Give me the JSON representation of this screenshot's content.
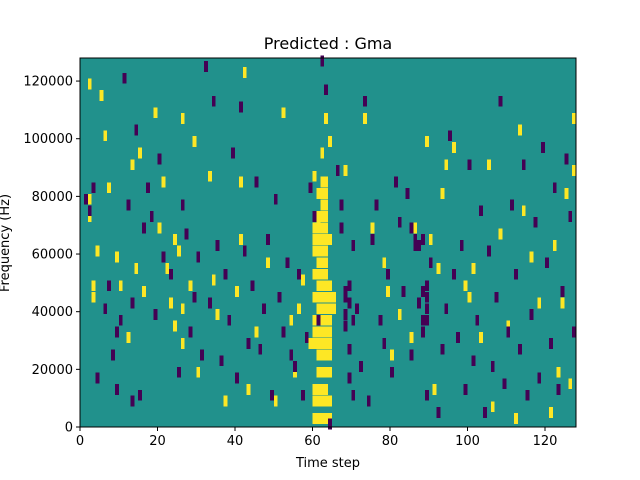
{
  "chart_data": {
    "type": "heatmap",
    "title": "Predicted : Gma",
    "xlabel": "Time step",
    "ylabel": "Frequency (Hz)",
    "xlim": [
      0,
      128
    ],
    "ylim": [
      0,
      128000
    ],
    "x_ticks": [
      0,
      20,
      40,
      60,
      80,
      100,
      120
    ],
    "y_ticks": [
      0,
      20000,
      40000,
      60000,
      80000,
      100000,
      120000
    ],
    "grid": false,
    "colors": {
      "background": "#21918c",
      "low": "#440154",
      "high": "#fde725"
    },
    "value_legend": "0 = low (dark purple), 1 = background (teal), 2 = high (yellow)",
    "high_cells": [
      [
        2,
        119000
      ],
      [
        2,
        79000
      ],
      [
        2,
        73000
      ],
      [
        3,
        49000
      ],
      [
        3,
        45000
      ],
      [
        4,
        61000
      ],
      [
        5,
        115000
      ],
      [
        6,
        101000
      ],
      [
        7,
        83000
      ],
      [
        9,
        59000
      ],
      [
        10,
        49000
      ],
      [
        12,
        31000
      ],
      [
        13,
        91000
      ],
      [
        14,
        55000
      ],
      [
        15,
        95000
      ],
      [
        16,
        47000
      ],
      [
        19,
        109000
      ],
      [
        20,
        69000
      ],
      [
        21,
        85000
      ],
      [
        22,
        55000
      ],
      [
        23,
        43000
      ],
      [
        24,
        35000
      ],
      [
        24,
        65000
      ],
      [
        25,
        61000
      ],
      [
        26,
        41000
      ],
      [
        26,
        29000
      ],
      [
        26,
        107000
      ],
      [
        28,
        49000
      ],
      [
        29,
        99000
      ],
      [
        30,
        19000
      ],
      [
        33,
        87000
      ],
      [
        34,
        51000
      ],
      [
        35,
        39000
      ],
      [
        37,
        9000
      ],
      [
        40,
        47000
      ],
      [
        41,
        65000
      ],
      [
        41,
        85000
      ],
      [
        42,
        123000
      ],
      [
        43,
        13000
      ],
      [
        45,
        33000
      ],
      [
        48,
        57000
      ],
      [
        50,
        9000
      ],
      [
        52,
        109000
      ],
      [
        54,
        37000
      ],
      [
        55,
        19000
      ],
      [
        56,
        41000
      ],
      [
        57,
        51000
      ],
      [
        59,
        29000
      ],
      [
        60,
        87000
      ],
      [
        61,
        71000
      ],
      [
        62,
        95000
      ],
      [
        63,
        107000
      ],
      [
        64,
        99000
      ],
      [
        68,
        89000
      ],
      [
        73,
        107000
      ],
      [
        75,
        69000
      ],
      [
        78,
        57000
      ],
      [
        79,
        47000
      ],
      [
        80,
        25000
      ],
      [
        82,
        39000
      ],
      [
        85,
        31000
      ],
      [
        86,
        69000
      ],
      [
        89,
        99000
      ],
      [
        90,
        65000
      ],
      [
        91,
        13000
      ],
      [
        92,
        55000
      ],
      [
        93,
        81000
      ],
      [
        94,
        91000
      ],
      [
        96,
        97000
      ],
      [
        99,
        49000
      ],
      [
        100,
        45000
      ],
      [
        101,
        55000
      ],
      [
        103,
        31000
      ],
      [
        105,
        91000
      ],
      [
        106,
        7000
      ],
      [
        108,
        67000
      ],
      [
        110,
        35000
      ],
      [
        112,
        3000
      ],
      [
        113,
        103000
      ],
      [
        114,
        75000
      ],
      [
        116,
        59000
      ],
      [
        118,
        43000
      ],
      [
        121,
        5000
      ],
      [
        122,
        63000
      ],
      [
        123,
        19000
      ],
      [
        124,
        43000
      ],
      [
        125,
        81000
      ],
      [
        126,
        15000
      ],
      [
        127,
        107000
      ],
      [
        127,
        89000
      ]
    ],
    "high_band": {
      "x_range": [
        60,
        66
      ],
      "cells": [
        [
          60,
          3000
        ],
        [
          61,
          3000
        ],
        [
          62,
          3000
        ],
        [
          63,
          3000
        ],
        [
          64,
          3000
        ],
        [
          60,
          9000
        ],
        [
          61,
          9000
        ],
        [
          62,
          9000
        ],
        [
          63,
          9000
        ],
        [
          64,
          9000
        ],
        [
          60,
          13000
        ],
        [
          61,
          13000
        ],
        [
          62,
          13000
        ],
        [
          63,
          13000
        ],
        [
          61,
          19000
        ],
        [
          62,
          19000
        ],
        [
          63,
          19000
        ],
        [
          64,
          19000
        ],
        [
          61,
          25000
        ],
        [
          62,
          25000
        ],
        [
          63,
          25000
        ],
        [
          64,
          25000
        ],
        [
          60,
          29000
        ],
        [
          61,
          29000
        ],
        [
          62,
          29000
        ],
        [
          63,
          29000
        ],
        [
          64,
          29000
        ],
        [
          60,
          33000
        ],
        [
          61,
          33000
        ],
        [
          62,
          33000
        ],
        [
          63,
          33000
        ],
        [
          64,
          33000
        ],
        [
          60,
          37000
        ],
        [
          61,
          37000
        ],
        [
          62,
          37000
        ],
        [
          63,
          37000
        ],
        [
          64,
          37000
        ],
        [
          61,
          41000
        ],
        [
          62,
          41000
        ],
        [
          63,
          41000
        ],
        [
          64,
          41000
        ],
        [
          65,
          41000
        ],
        [
          60,
          45000
        ],
        [
          61,
          45000
        ],
        [
          62,
          45000
        ],
        [
          63,
          45000
        ],
        [
          64,
          45000
        ],
        [
          65,
          45000
        ],
        [
          61,
          49000
        ],
        [
          62,
          49000
        ],
        [
          63,
          49000
        ],
        [
          64,
          49000
        ],
        [
          60,
          53000
        ],
        [
          61,
          53000
        ],
        [
          62,
          53000
        ],
        [
          63,
          53000
        ],
        [
          61,
          57000
        ],
        [
          62,
          57000
        ],
        [
          63,
          57000
        ],
        [
          60,
          61000
        ],
        [
          61,
          61000
        ],
        [
          62,
          61000
        ],
        [
          63,
          61000
        ],
        [
          60,
          65000
        ],
        [
          61,
          65000
        ],
        [
          62,
          65000
        ],
        [
          63,
          65000
        ],
        [
          64,
          65000
        ],
        [
          60,
          69000
        ],
        [
          61,
          69000
        ],
        [
          62,
          69000
        ],
        [
          63,
          69000
        ],
        [
          61,
          73000
        ],
        [
          62,
          73000
        ],
        [
          63,
          73000
        ],
        [
          62,
          77000
        ],
        [
          63,
          77000
        ],
        [
          61,
          81000
        ],
        [
          62,
          81000
        ],
        [
          63,
          81000
        ],
        [
          62,
          85000
        ],
        [
          63,
          85000
        ]
      ]
    },
    "low_cells": [
      [
        1,
        79000
      ],
      [
        2,
        75000
      ],
      [
        3,
        83000
      ],
      [
        4,
        17000
      ],
      [
        6,
        41000
      ],
      [
        7,
        49000
      ],
      [
        8,
        25000
      ],
      [
        9,
        33000
      ],
      [
        9,
        13000
      ],
      [
        10,
        37000
      ],
      [
        11,
        121000
      ],
      [
        12,
        77000
      ],
      [
        13,
        43000
      ],
      [
        13,
        9000
      ],
      [
        14,
        103000
      ],
      [
        15,
        11000
      ],
      [
        16,
        69000
      ],
      [
        17,
        83000
      ],
      [
        18,
        73000
      ],
      [
        19,
        39000
      ],
      [
        20,
        93000
      ],
      [
        21,
        59000
      ],
      [
        23,
        53000
      ],
      [
        25,
        19000
      ],
      [
        26,
        77000
      ],
      [
        27,
        67000
      ],
      [
        28,
        33000
      ],
      [
        29,
        45000
      ],
      [
        30,
        59000
      ],
      [
        31,
        25000
      ],
      [
        32,
        125000
      ],
      [
        33,
        43000
      ],
      [
        34,
        113000
      ],
      [
        35,
        63000
      ],
      [
        36,
        23000
      ],
      [
        37,
        53000
      ],
      [
        38,
        37000
      ],
      [
        39,
        95000
      ],
      [
        40,
        17000
      ],
      [
        41,
        111000
      ],
      [
        42,
        61000
      ],
      [
        43,
        29000
      ],
      [
        44,
        49000
      ],
      [
        45,
        85000
      ],
      [
        46,
        27000
      ],
      [
        47,
        41000
      ],
      [
        48,
        65000
      ],
      [
        49,
        11000
      ],
      [
        50,
        79000
      ],
      [
        51,
        45000
      ],
      [
        52,
        33000
      ],
      [
        53,
        57000
      ],
      [
        54,
        25000
      ],
      [
        55,
        21000
      ],
      [
        56,
        53000
      ],
      [
        57,
        11000
      ],
      [
        58,
        31000
      ],
      [
        59,
        83000
      ],
      [
        60,
        73000
      ],
      [
        61,
        37000
      ],
      [
        62,
        127000
      ],
      [
        63,
        117000
      ],
      [
        64,
        1000
      ],
      [
        66,
        89000
      ],
      [
        67,
        77000
      ],
      [
        67,
        69000
      ],
      [
        68,
        47000
      ],
      [
        68,
        35000
      ],
      [
        69,
        27000
      ],
      [
        69,
        17000
      ],
      [
        70,
        11000
      ],
      [
        70,
        63000
      ],
      [
        71,
        41000
      ],
      [
        72,
        21000
      ],
      [
        73,
        113000
      ],
      [
        74,
        9000
      ],
      [
        75,
        65000
      ],
      [
        76,
        77000
      ],
      [
        77,
        37000
      ],
      [
        78,
        29000
      ],
      [
        79,
        53000
      ],
      [
        80,
        19000
      ],
      [
        81,
        85000
      ],
      [
        82,
        71000
      ],
      [
        83,
        47000
      ],
      [
        84,
        81000
      ],
      [
        85,
        25000
      ],
      [
        86,
        65000
      ],
      [
        87,
        43000
      ],
      [
        88,
        37000
      ],
      [
        88,
        33000
      ],
      [
        89,
        11000
      ],
      [
        90,
        57000
      ],
      [
        92,
        5000
      ],
      [
        93,
        27000
      ],
      [
        94,
        41000
      ],
      [
        95,
        101000
      ],
      [
        96,
        53000
      ],
      [
        97,
        31000
      ],
      [
        98,
        63000
      ],
      [
        99,
        13000
      ],
      [
        100,
        91000
      ],
      [
        101,
        23000
      ],
      [
        102,
        37000
      ],
      [
        103,
        75000
      ],
      [
        104,
        5000
      ],
      [
        105,
        61000
      ],
      [
        106,
        21000
      ],
      [
        107,
        45000
      ],
      [
        108,
        113000
      ],
      [
        109,
        15000
      ],
      [
        110,
        33000
      ],
      [
        111,
        77000
      ],
      [
        112,
        53000
      ],
      [
        113,
        27000
      ],
      [
        114,
        91000
      ],
      [
        115,
        11000
      ],
      [
        116,
        39000
      ],
      [
        117,
        71000
      ],
      [
        118,
        17000
      ],
      [
        119,
        97000
      ],
      [
        120,
        57000
      ],
      [
        121,
        29000
      ],
      [
        122,
        83000
      ],
      [
        123,
        13000
      ],
      [
        124,
        47000
      ],
      [
        125,
        93000
      ],
      [
        126,
        73000
      ],
      [
        127,
        33000
      ]
    ],
    "low_band": {
      "cells": [
        [
          68,
          45000
        ],
        [
          69,
          43000
        ],
        [
          68,
          39000
        ],
        [
          70,
          37000
        ],
        [
          69,
          49000
        ],
        [
          89,
          45000
        ],
        [
          89,
          41000
        ],
        [
          89,
          37000
        ],
        [
          88,
          47000
        ],
        [
          89,
          49000
        ],
        [
          86,
          63000
        ],
        [
          87,
          63000
        ],
        [
          88,
          65000
        ],
        [
          85,
          69000
        ]
      ]
    }
  }
}
